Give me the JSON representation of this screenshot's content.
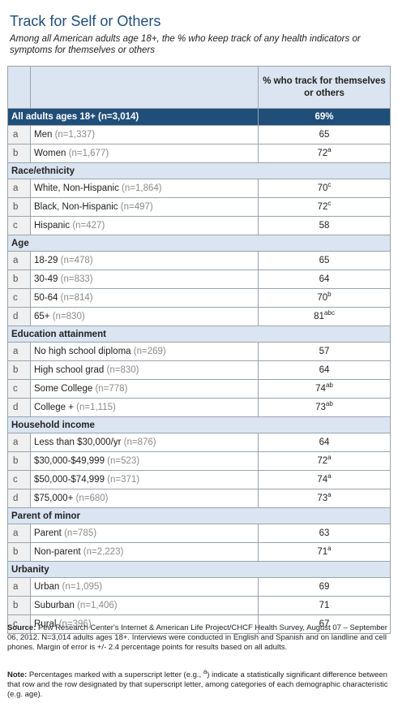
{
  "title": "Track for Self or Others",
  "subtitle": "Among all American adults age 18+, the % who keep track of any health indicators or symptoms for themselves or others",
  "header": {
    "col_letter": "",
    "col_label": "",
    "col_value": "% who track for themselves or others"
  },
  "table": [
    {
      "type": "all",
      "label": "All adults ages 18+ (n=3,014)",
      "value": "69%"
    },
    {
      "type": "row",
      "letter": "a",
      "label": "Men",
      "n": "(n=1,337)",
      "value": "65",
      "sup": ""
    },
    {
      "type": "row",
      "letter": "b",
      "label": "Women",
      "n": "(n=1,677)",
      "value": "72",
      "sup": "a"
    },
    {
      "type": "section",
      "label": "Race/ethnicity"
    },
    {
      "type": "row",
      "letter": "a",
      "label": "White, Non-Hispanic",
      "n": "(n=1,864)",
      "value": "70",
      "sup": "c"
    },
    {
      "type": "row",
      "letter": "b",
      "label": "Black, Non-Hispanic",
      "n": "(n=497)",
      "value": "72",
      "sup": "c"
    },
    {
      "type": "row",
      "letter": "c",
      "label": "Hispanic",
      "n": "(n=427)",
      "value": "58",
      "sup": ""
    },
    {
      "type": "section",
      "label": "Age"
    },
    {
      "type": "row",
      "letter": "a",
      "label": "18-29",
      "n": "(n=478)",
      "value": "65",
      "sup": ""
    },
    {
      "type": "row",
      "letter": "b",
      "label": "30-49",
      "n": "(n=833)",
      "value": "64",
      "sup": ""
    },
    {
      "type": "row",
      "letter": "c",
      "label": "50-64",
      "n": "(n=814)",
      "value": "70",
      "sup": "b"
    },
    {
      "type": "row",
      "letter": "d",
      "label": "65+",
      "n": "(n=830)",
      "value": "81",
      "sup": "abc"
    },
    {
      "type": "section",
      "label": "Education attainment"
    },
    {
      "type": "row",
      "letter": "a",
      "label": "No high school diploma",
      "n": "(n=269)",
      "value": "57",
      "sup": ""
    },
    {
      "type": "row",
      "letter": "b",
      "label": "High school grad",
      "n": "(n=830)",
      "value": "64",
      "sup": ""
    },
    {
      "type": "row",
      "letter": "c",
      "label": "Some College",
      "n": "(n=778)",
      "value": "74",
      "sup": "ab"
    },
    {
      "type": "row",
      "letter": "d",
      "label": "College +",
      "n": "(n=1,115)",
      "value": "73",
      "sup": "ab"
    },
    {
      "type": "section",
      "label": "Household income"
    },
    {
      "type": "row",
      "letter": "a",
      "label": "Less than $30,000/yr",
      "n": "(n=876)",
      "value": "64",
      "sup": ""
    },
    {
      "type": "row",
      "letter": "b",
      "label": "$30,000-$49,999",
      "n": "(n=523)",
      "value": "72",
      "sup": "a"
    },
    {
      "type": "row",
      "letter": "c",
      "label": "$50,000-$74,999",
      "n": "(n=371)",
      "value": "74",
      "sup": "a"
    },
    {
      "type": "row",
      "letter": "d",
      "label": "$75,000+",
      "n": "(n=680)",
      "value": "73",
      "sup": "a"
    },
    {
      "type": "section",
      "label": "Parent of minor"
    },
    {
      "type": "row",
      "letter": "a",
      "label": "Parent",
      "n": "(n=785)",
      "value": "63",
      "sup": ""
    },
    {
      "type": "row",
      "letter": "b",
      "label": "Non-parent",
      "n": "(n=2,223)",
      "value": "71",
      "sup": "a"
    },
    {
      "type": "section",
      "label": "Urbanity"
    },
    {
      "type": "row",
      "letter": "a",
      "label": "Urban",
      "n": "(n=1,095)",
      "value": "69",
      "sup": ""
    },
    {
      "type": "row",
      "letter": "b",
      "label": "Suburban",
      "n": "(n=1,406)",
      "value": "71",
      "sup": ""
    },
    {
      "type": "row",
      "letter": "c",
      "label": "Rural",
      "n": "(n=396)",
      "value": "67",
      "sup": ""
    }
  ],
  "source": {
    "label": "Source:",
    "text": "Pew Research Center's Internet & American Life Project/CHCF Health Survey, August 07 – September 06, 2012. N=3,014 adults ages 18+. Interviews were conducted in English and Spanish and on landline and cell phones.  Margin of error is +/- 2.4 percentage points for results based on all adults."
  },
  "note": {
    "label": "Note:",
    "text_before": "Percentages marked with a superscript letter (e.g., ",
    "example_sup": "a",
    "text_after": ") indicate a statistically significant difference between that row and the row designated by that superscript letter, among categories of each demographic characteristic (e.g. age)."
  },
  "colors": {
    "accent": "#1f4e79",
    "header_bg": "#dbe5f1",
    "n_text": "#8a8a8a"
  }
}
